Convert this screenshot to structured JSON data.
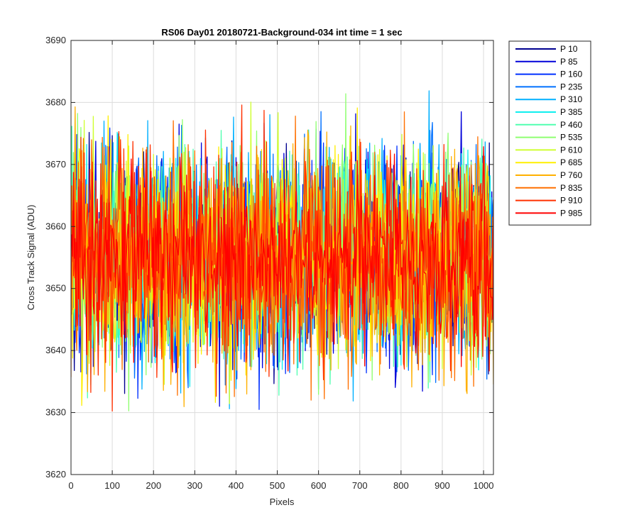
{
  "chart_data": {
    "type": "line",
    "title": "RS06 Day01 20180721-Background-034 int time = 1 sec",
    "xlabel": "Pixels",
    "ylabel": "Cross Track Signal (ADU)",
    "xlim": [
      0,
      1024
    ],
    "ylim": [
      3620,
      3690
    ],
    "x_ticks": [
      0,
      100,
      200,
      300,
      400,
      500,
      600,
      700,
      800,
      900,
      1000
    ],
    "y_ticks": [
      3620,
      3630,
      3640,
      3650,
      3660,
      3670,
      3680,
      3690
    ],
    "grid": true,
    "legend_position": "outside-right-top",
    "series": [
      {
        "name": "P 10",
        "color": "#00008f",
        "mean": 3655,
        "min": 3630,
        "max": 3680,
        "range_x": [
          0,
          1024
        ]
      },
      {
        "name": "P 85",
        "color": "#0000d9",
        "mean": 3655,
        "min": 3631,
        "max": 3688,
        "range_x": [
          0,
          1024
        ]
      },
      {
        "name": "P 160",
        "color": "#0030ff",
        "mean": 3655,
        "min": 3628,
        "max": 3683,
        "range_x": [
          0,
          1024
        ]
      },
      {
        "name": "P 235",
        "color": "#0070ff",
        "mean": 3655,
        "min": 3627,
        "max": 3682,
        "range_x": [
          0,
          1024
        ]
      },
      {
        "name": "P 310",
        "color": "#00b0ff",
        "mean": 3655,
        "min": 3627,
        "max": 3682,
        "range_x": [
          0,
          1024
        ]
      },
      {
        "name": "P 385",
        "color": "#10efef",
        "mean": 3655,
        "min": 3630,
        "max": 3682,
        "range_x": [
          0,
          1024
        ]
      },
      {
        "name": "P 460",
        "color": "#50ffb0",
        "mean": 3655,
        "min": 3630,
        "max": 3685,
        "range_x": [
          0,
          1024
        ]
      },
      {
        "name": "P 535",
        "color": "#8fff70",
        "mean": 3655,
        "min": 3626,
        "max": 3682,
        "range_x": [
          0,
          1024
        ]
      },
      {
        "name": "P 610",
        "color": "#cfff30",
        "mean": 3655,
        "min": 3625,
        "max": 3683,
        "range_x": [
          0,
          1024
        ]
      },
      {
        "name": "P 685",
        "color": "#ffef00",
        "mean": 3655,
        "min": 3630,
        "max": 3685,
        "range_x": [
          0,
          1024
        ]
      },
      {
        "name": "P 760",
        "color": "#ffb000",
        "mean": 3655,
        "min": 3630,
        "max": 3685,
        "range_x": [
          0,
          1024
        ]
      },
      {
        "name": "P 835",
        "color": "#ff7000",
        "mean": 3655,
        "min": 3626,
        "max": 3682,
        "range_x": [
          0,
          1024
        ]
      },
      {
        "name": "P 910",
        "color": "#ff3000",
        "mean": 3655,
        "min": 3623,
        "max": 3681,
        "range_x": [
          0,
          1024
        ]
      },
      {
        "name": "P 985",
        "color": "#ff0000",
        "mean": 3655,
        "min": 3630,
        "max": 3675,
        "range_x": [
          0,
          1024
        ]
      }
    ]
  }
}
